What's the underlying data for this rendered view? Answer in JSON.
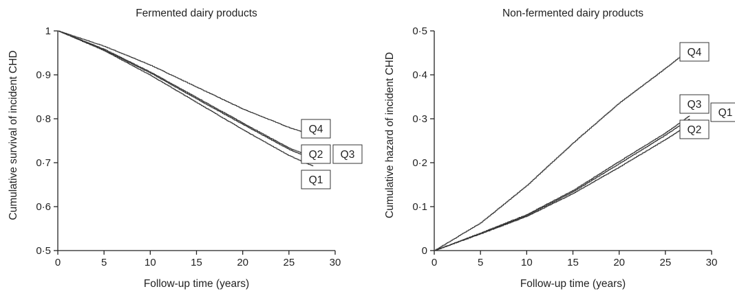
{
  "chart_data": [
    {
      "type": "line",
      "title": "Fermented dairy products",
      "xlabel": "Follow-up time (years)",
      "ylabel": "Cumulative survival of incident CHD",
      "xlim": [
        0,
        30
      ],
      "ylim": [
        0.5,
        1.0
      ],
      "x_ticks": [
        "0",
        "5",
        "10",
        "15",
        "20",
        "25",
        "30"
      ],
      "y_ticks": [
        "0·5",
        "0·6",
        "0·7",
        "0·8",
        "0·9",
        "1"
      ],
      "grid": false,
      "series": [
        {
          "name": "Q4",
          "x": [
            0,
            5,
            10,
            15,
            20,
            25,
            27.6
          ],
          "values": [
            1.0,
            0.965,
            0.922,
            0.872,
            0.822,
            0.78,
            0.762
          ]
        },
        {
          "name": "Q3",
          "x": [
            0,
            5,
            10,
            15,
            20,
            25,
            27.6
          ],
          "values": [
            1.0,
            0.958,
            0.906,
            0.848,
            0.79,
            0.733,
            0.712
          ]
        },
        {
          "name": "Q2",
          "x": [
            0,
            5,
            10,
            15,
            20,
            25,
            27.6
          ],
          "values": [
            1.0,
            0.956,
            0.904,
            0.845,
            0.787,
            0.73,
            0.708
          ]
        },
        {
          "name": "Q1",
          "x": [
            0,
            5,
            10,
            15,
            20,
            25,
            27.6
          ],
          "values": [
            1.0,
            0.955,
            0.899,
            0.837,
            0.775,
            0.716,
            0.692
          ]
        }
      ]
    },
    {
      "type": "line",
      "title": "Non-fermented dairy products",
      "xlabel": "Follow-up time (years)",
      "ylabel": "Cumulative hazard of incident CHD",
      "xlim": [
        0,
        30
      ],
      "ylim": [
        0,
        0.5
      ],
      "x_ticks": [
        "0",
        "5",
        "10",
        "15",
        "20",
        "25",
        "30"
      ],
      "y_ticks": [
        "0",
        "0·1",
        "0·2",
        "0·3",
        "0·4",
        "0·5"
      ],
      "grid": false,
      "series": [
        {
          "name": "Q4",
          "x": [
            0,
            5,
            10,
            15,
            20,
            25,
            27.6
          ],
          "values": [
            0,
            0.063,
            0.148,
            0.245,
            0.336,
            0.415,
            0.458
          ]
        },
        {
          "name": "Q3",
          "x": [
            0,
            5,
            10,
            15,
            20,
            25,
            27.6
          ],
          "values": [
            0,
            0.04,
            0.082,
            0.137,
            0.203,
            0.268,
            0.307
          ]
        },
        {
          "name": "Q1",
          "x": [
            0,
            5,
            10,
            15,
            20,
            25,
            27.6
          ],
          "values": [
            0,
            0.039,
            0.08,
            0.134,
            0.198,
            0.263,
            0.3
          ]
        },
        {
          "name": "Q2",
          "x": [
            0,
            5,
            10,
            15,
            20,
            25,
            27.6
          ],
          "values": [
            0,
            0.038,
            0.078,
            0.13,
            0.19,
            0.253,
            0.288
          ]
        }
      ]
    }
  ]
}
